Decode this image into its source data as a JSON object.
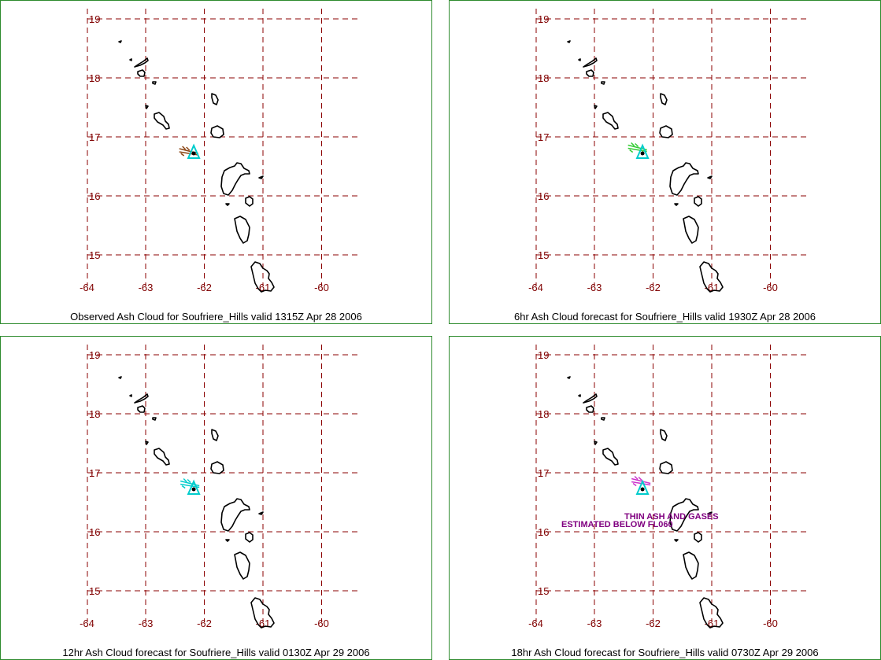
{
  "map": {
    "lon_ticks": [
      "-64",
      "-63",
      "-62",
      "-61",
      "-60"
    ],
    "lat_ticks": [
      "19",
      "18",
      "17",
      "16",
      "15"
    ],
    "volcano": {
      "name": "Soufriere_Hills",
      "lon": -62.18,
      "lat": 16.72
    }
  },
  "panels": [
    {
      "caption": "Observed Ash Cloud for Soufriere_Hills valid 1315Z Apr 28 2006",
      "plume_color": "#8b4513",
      "plume": {
        "lon": -62.4,
        "lat": 16.76
      },
      "note": []
    },
    {
      "caption": "6hr Ash Cloud forecast for Soufriere_Hills valid 1930Z Apr 28 2006",
      "plume_color": "#33cc33",
      "plume": {
        "lon": -62.4,
        "lat": 16.82
      },
      "note": []
    },
    {
      "caption": "12hr Ash Cloud forecast for Soufriere_Hills valid 0130Z Apr 29 2006",
      "plume_color": "#00cccc",
      "plume": {
        "lon": -62.38,
        "lat": 16.82
      },
      "note": []
    },
    {
      "caption": "18hr Ash Cloud forecast for Soufriere_Hills valid 0730Z Apr 29 2006",
      "plume_color": "#cc33cc",
      "plume": {
        "lon": -62.34,
        "lat": 16.86
      },
      "note": [
        "THIN ASH AND GASES",
        "ESTIMATED BELOW FL060"
      ]
    }
  ]
}
